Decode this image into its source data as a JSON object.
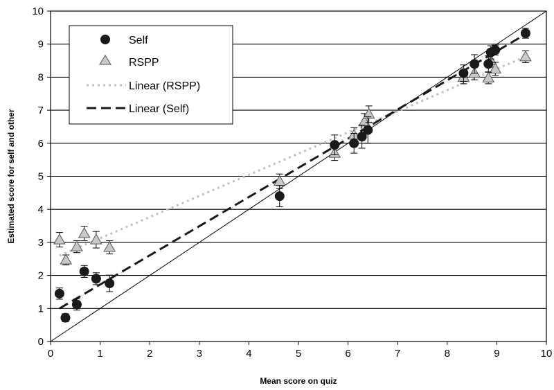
{
  "chart_data": {
    "type": "scatter",
    "xlabel": "Mean score on quiz",
    "ylabel": "Estimated score for self and other",
    "xlim": [
      0,
      10
    ],
    "ylim": [
      0,
      10
    ],
    "xticks": [
      "0",
      "1",
      "2",
      "3",
      "4",
      "5",
      "6",
      "7",
      "8",
      "9",
      "10"
    ],
    "yticks": [
      "0",
      "1",
      "2",
      "3",
      "4",
      "5",
      "6",
      "7",
      "8",
      "9",
      "10"
    ],
    "grid": "horizontal",
    "legend_position": "top-left",
    "reference_line": {
      "x": [
        0,
        10
      ],
      "y": [
        0,
        10
      ]
    },
    "series": [
      {
        "name": "Self",
        "marker": "circle",
        "color": "#1a1a1a",
        "points": [
          {
            "x": 0.18,
            "y": 1.45,
            "err": 0.17
          },
          {
            "x": 0.3,
            "y": 0.72,
            "err": 0.12
          },
          {
            "x": 0.53,
            "y": 1.12,
            "err": 0.17
          },
          {
            "x": 0.68,
            "y": 2.12,
            "err": 0.18
          },
          {
            "x": 0.92,
            "y": 1.9,
            "err": 0.18
          },
          {
            "x": 1.19,
            "y": 1.76,
            "err": 0.25
          },
          {
            "x": 4.62,
            "y": 4.4,
            "err": 0.32
          },
          {
            "x": 5.73,
            "y": 5.95,
            "err": 0.3
          },
          {
            "x": 6.12,
            "y": 6.0,
            "err": 0.3
          },
          {
            "x": 6.28,
            "y": 6.2,
            "err": 0.35
          },
          {
            "x": 6.4,
            "y": 6.4,
            "err": 0.4
          },
          {
            "x": 8.33,
            "y": 8.12,
            "err": 0.25
          },
          {
            "x": 8.55,
            "y": 8.4,
            "err": 0.28
          },
          {
            "x": 8.83,
            "y": 8.4,
            "err": 0.25
          },
          {
            "x": 8.88,
            "y": 8.75,
            "err": 0.2
          },
          {
            "x": 8.97,
            "y": 8.82,
            "err": 0.15
          },
          {
            "x": 9.58,
            "y": 9.33,
            "err": 0.15
          }
        ]
      },
      {
        "name": "RSPP",
        "marker": "triangle",
        "color": "#bfbfbf",
        "points": [
          {
            "x": 0.18,
            "y": 3.08,
            "err": 0.22
          },
          {
            "x": 0.31,
            "y": 2.47,
            "err": 0.15
          },
          {
            "x": 0.53,
            "y": 2.87,
            "err": 0.18
          },
          {
            "x": 0.68,
            "y": 3.27,
            "err": 0.22
          },
          {
            "x": 0.92,
            "y": 3.08,
            "err": 0.25
          },
          {
            "x": 1.19,
            "y": 2.85,
            "err": 0.2
          },
          {
            "x": 4.62,
            "y": 4.85,
            "err": 0.22
          },
          {
            "x": 5.73,
            "y": 5.7,
            "err": 0.22
          },
          {
            "x": 6.12,
            "y": 6.25,
            "err": 0.22
          },
          {
            "x": 6.33,
            "y": 6.65,
            "err": 0.25
          },
          {
            "x": 6.42,
            "y": 6.88,
            "err": 0.25
          },
          {
            "x": 8.33,
            "y": 8.0,
            "err": 0.2
          },
          {
            "x": 8.55,
            "y": 8.12,
            "err": 0.2
          },
          {
            "x": 8.83,
            "y": 7.98,
            "err": 0.18
          },
          {
            "x": 8.88,
            "y": 8.5,
            "err": 0.2
          },
          {
            "x": 8.97,
            "y": 8.25,
            "err": 0.2
          },
          {
            "x": 9.58,
            "y": 8.62,
            "err": 0.18
          }
        ]
      }
    ],
    "trendlines": [
      {
        "name": "Linear (RSPP)",
        "style": "dotted",
        "color": "#c0c0c0",
        "x": [
          0.18,
          9.58
        ],
        "y": [
          2.6,
          8.62
        ]
      },
      {
        "name": "Linear (Self)",
        "style": "dashed",
        "color": "#1a1a1a",
        "x": [
          0.18,
          9.58
        ],
        "y": [
          1.0,
          9.3
        ]
      }
    ],
    "legend": [
      "Self",
      "RSPP",
      "Linear (RSPP)",
      "Linear (Self)"
    ]
  }
}
